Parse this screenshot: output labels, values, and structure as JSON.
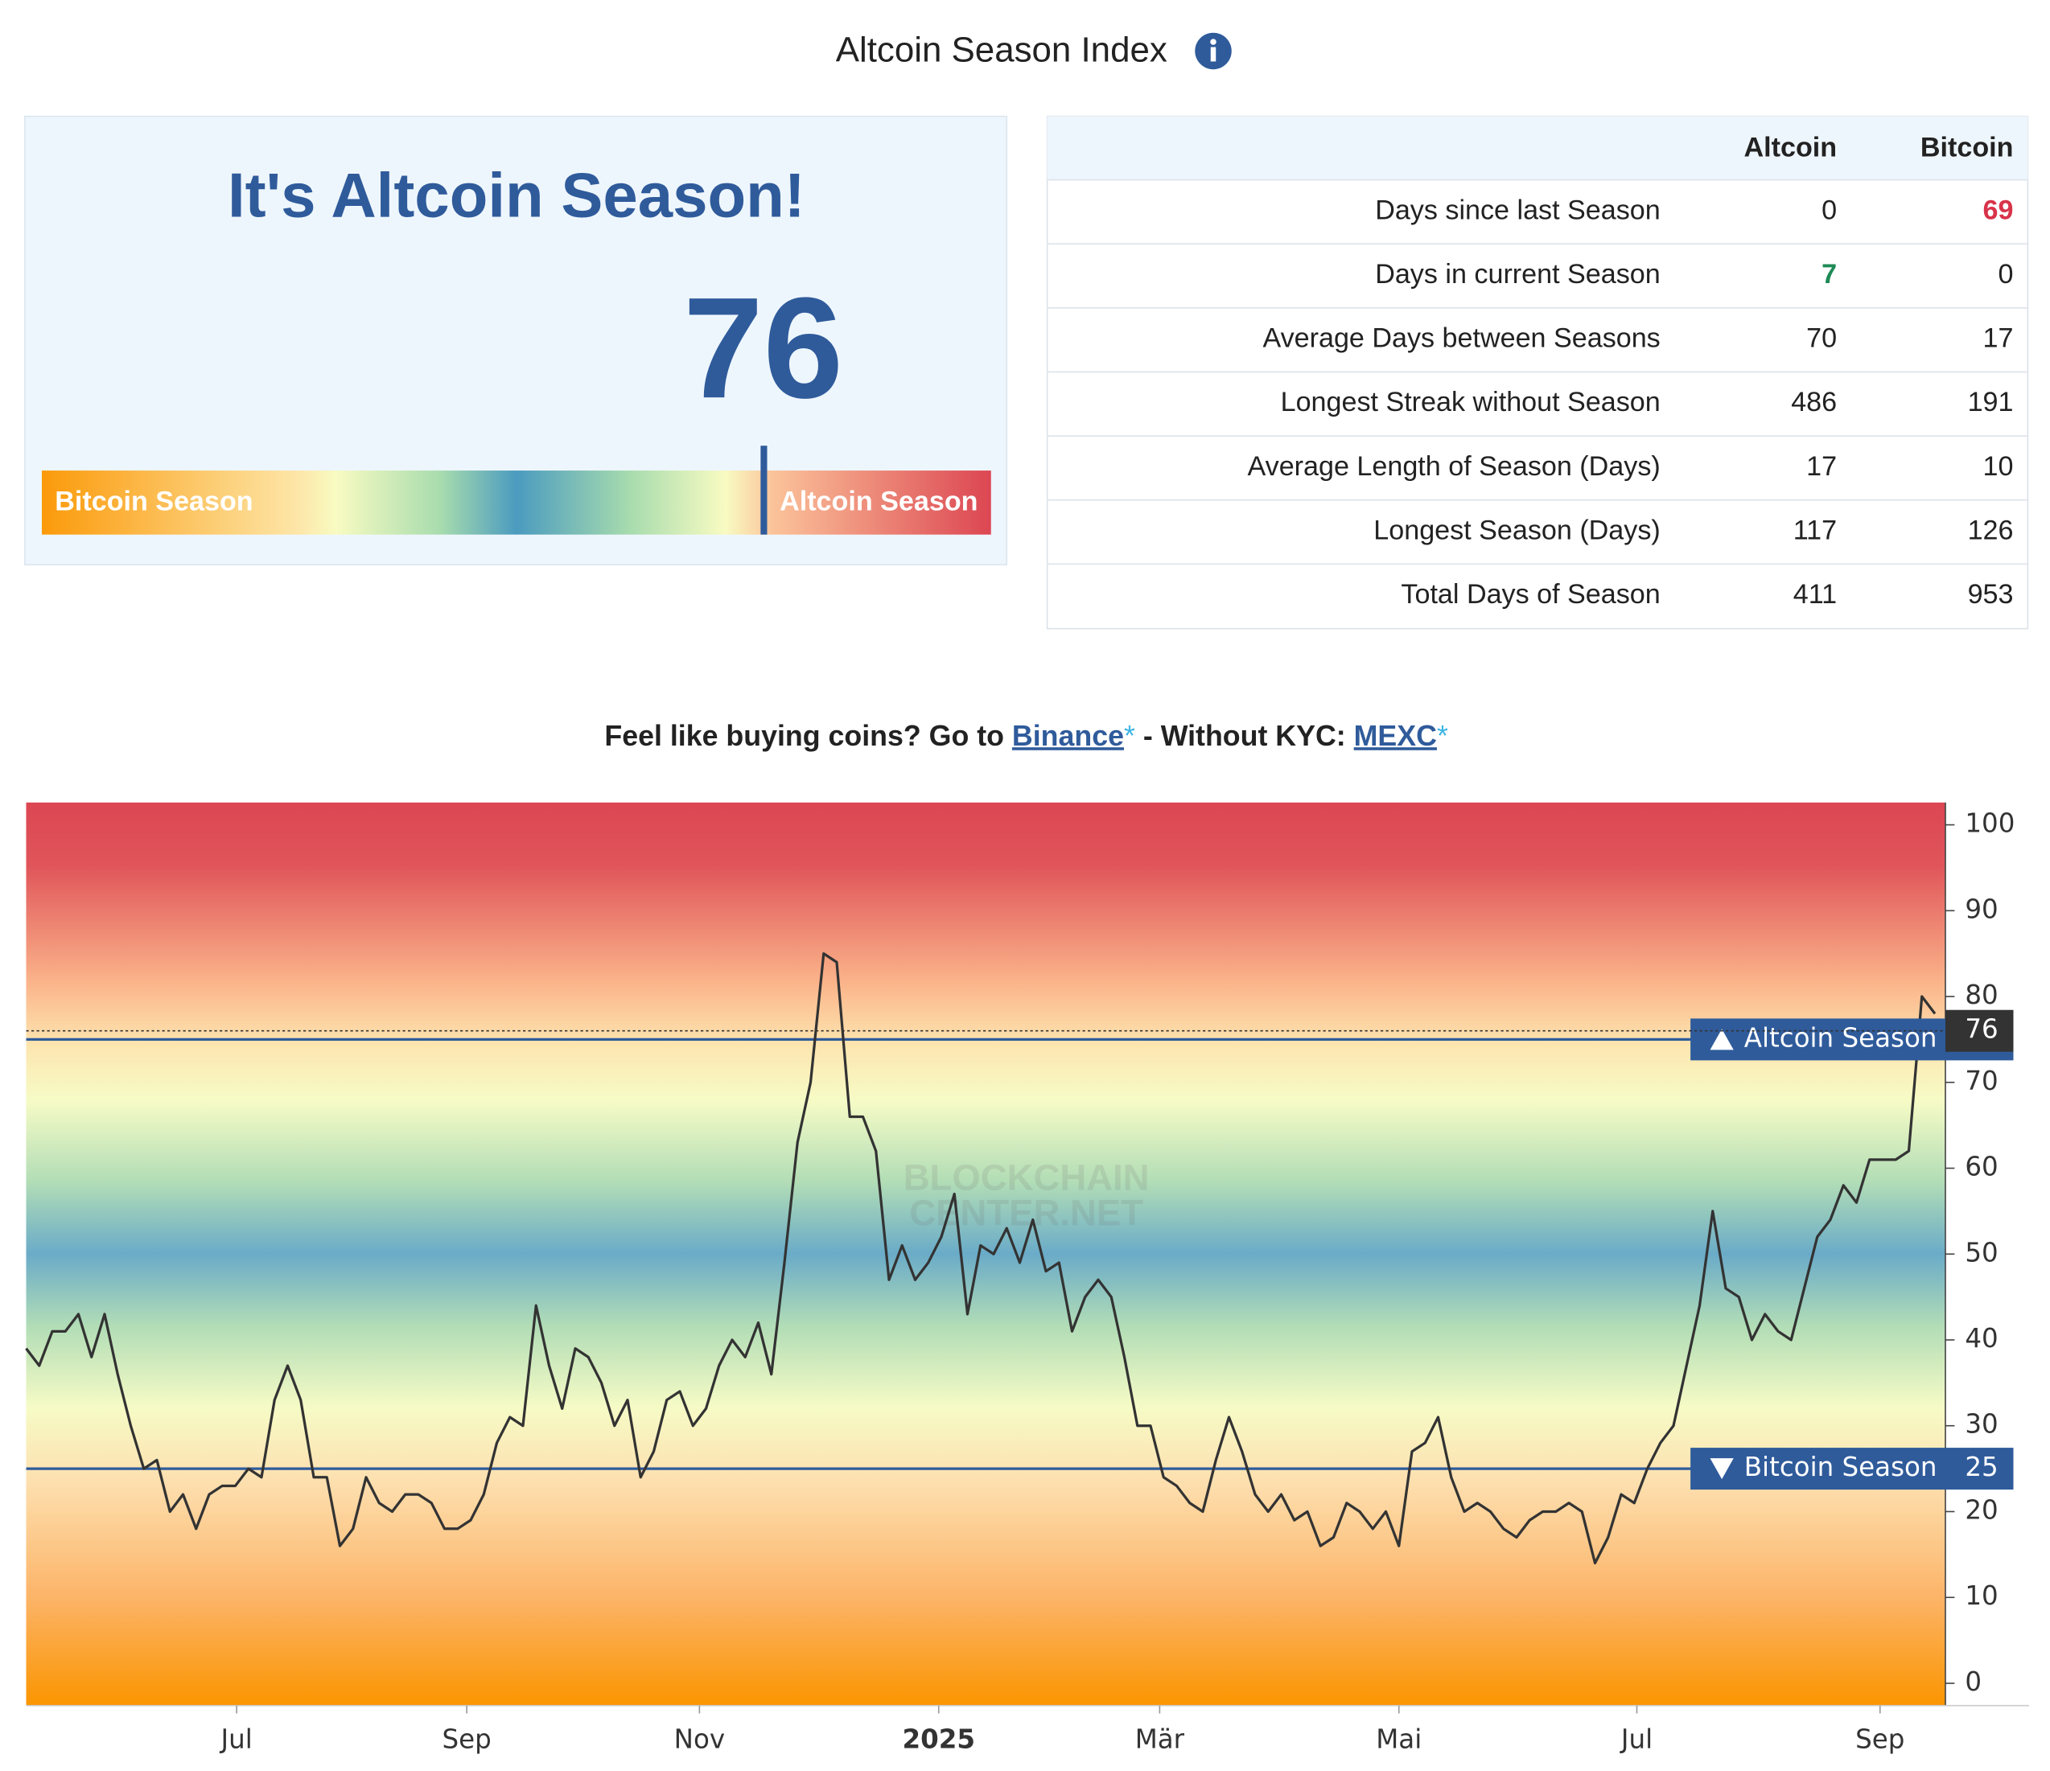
{
  "header": {
    "title": "Altcoin Season Index"
  },
  "gauge": {
    "heading": "It's Altcoin Season!",
    "value": 76,
    "range": [
      0,
      100
    ],
    "left_label": "Bitcoin Season",
    "right_label": "Altcoin Season"
  },
  "table": {
    "columns": [
      "Altcoin",
      "Bitcoin"
    ],
    "rows": [
      {
        "label": "Days since last Season",
        "altcoin": 0,
        "bitcoin": 69,
        "bitcoin_color": "#d8334a"
      },
      {
        "label": "Days in current Season",
        "altcoin": 7,
        "bitcoin": 0,
        "altcoin_color": "#1e8a55"
      },
      {
        "label": "Average Days between Seasons",
        "altcoin": 70,
        "bitcoin": 17
      },
      {
        "label": "Longest Streak without Season",
        "altcoin": 486,
        "bitcoin": 191
      },
      {
        "label": "Average Length of Season (Days)",
        "altcoin": 17,
        "bitcoin": 10
      },
      {
        "label": "Longest Season (Days)",
        "altcoin": 117,
        "bitcoin": 126
      },
      {
        "label": "Total Days of Season",
        "altcoin": 411,
        "bitcoin": 953
      }
    ]
  },
  "promo": {
    "text1": "Feel like buying coins? Go to ",
    "link1": "Binance",
    "star1": "*",
    "text2": " - Without KYC: ",
    "link2": "MEXC",
    "star2": "*"
  },
  "chart_data": {
    "type": "line",
    "color": "#333333",
    "watermark": [
      "BLOCKCHAIN",
      "CENTER.NET"
    ],
    "values": [
      39,
      37,
      41,
      41,
      43,
      38,
      43,
      36,
      30,
      25,
      26,
      20,
      22,
      18,
      22,
      23,
      23,
      25,
      24,
      33,
      37,
      33,
      24,
      24,
      16,
      18,
      24,
      21,
      20,
      22,
      22,
      21,
      18,
      18,
      19,
      22,
      28,
      31,
      30,
      44,
      37,
      32,
      39,
      38,
      35,
      30,
      33,
      24,
      27,
      33,
      34,
      30,
      32,
      37,
      40,
      38,
      42,
      36,
      49,
      63,
      70,
      85,
      84,
      66,
      66,
      62,
      47,
      51,
      47,
      49,
      52,
      57,
      43,
      51,
      50,
      53,
      49,
      54,
      48,
      49,
      41,
      45,
      47,
      45,
      38,
      30,
      30,
      24,
      23,
      21,
      20,
      26,
      31,
      27,
      22,
      20,
      22,
      19,
      20,
      16,
      17,
      21,
      20,
      18,
      20,
      16,
      27,
      28,
      31,
      24,
      20,
      21,
      20,
      18,
      17,
      19,
      20,
      20,
      21,
      20,
      14,
      17,
      22,
      21,
      25,
      28,
      30,
      37,
      44,
      55,
      46,
      45,
      40,
      43,
      41,
      40,
      46,
      52,
      54,
      58,
      56,
      61,
      61,
      61,
      62,
      80,
      78
    ],
    "xlim": [
      0,
      146.8
    ],
    "xticks": [
      {
        "value": 16.1,
        "label": "Jul"
      },
      {
        "value": 33.7,
        "label": "Sep"
      },
      {
        "value": 51.5,
        "label": "Nov"
      },
      {
        "value": 69.8,
        "label": "2025"
      },
      {
        "value": 86.7,
        "label": "Mär"
      },
      {
        "value": 105,
        "label": "Mai"
      },
      {
        "value": 123.2,
        "label": "Jul"
      },
      {
        "value": 141.8,
        "label": "Sep"
      }
    ],
    "ylim": [
      -2.6,
      102.6
    ],
    "yticks": [
      0,
      10,
      20,
      30,
      40,
      50,
      60,
      70,
      80,
      90,
      100
    ],
    "thresholds": [
      {
        "value": 75,
        "label": "Altcoin Season",
        "direction": "up"
      },
      {
        "value": 25,
        "label": "Bitcoin Season",
        "direction": "down"
      }
    ],
    "current_value": 76
  }
}
